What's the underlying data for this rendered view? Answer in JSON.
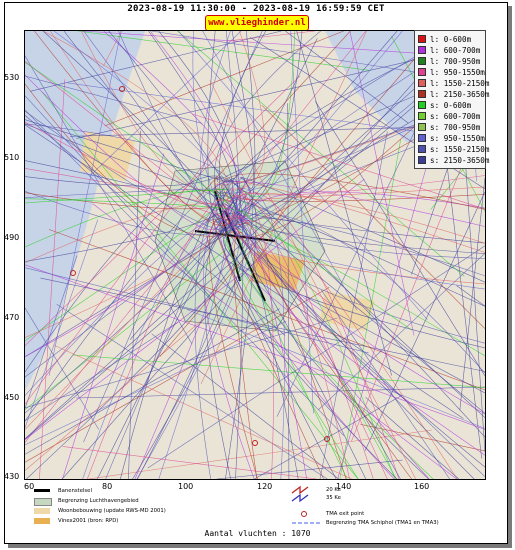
{
  "header": {
    "timerange": "2023-08-19 11:30:00 - 2023-08-19 16:59:59 CET",
    "site": "www.vlieghinder.nl"
  },
  "axes": {
    "y_ticks": [
      "530",
      "510",
      "490",
      "470",
      "450",
      "430"
    ],
    "x_ticks": [
      "60",
      "80",
      "100",
      "120",
      "140",
      "160"
    ]
  },
  "legend": [
    {
      "label": "l: 0-600m",
      "color": "#e01010"
    },
    {
      "label": "l: 600-700m",
      "color": "#b030e0"
    },
    {
      "label": "l: 700-950m",
      "color": "#208020"
    },
    {
      "label": "l: 950-1550m",
      "color": "#e04090"
    },
    {
      "label": "l: 1550-2150m",
      "color": "#e06060"
    },
    {
      "label": "l: 2150-3650m",
      "color": "#b03020"
    },
    {
      "label": "s: 0-600m",
      "color": "#20d020"
    },
    {
      "label": "s: 600-700m",
      "color": "#70d030"
    },
    {
      "label": "s: 700-950m",
      "color": "#90c050"
    },
    {
      "label": "s: 950-1550m",
      "color": "#6060d0"
    },
    {
      "label": "s: 1550-2150m",
      "color": "#5050b0"
    },
    {
      "label": "s: 2150-3650m",
      "color": "#3c3c9a"
    }
  ],
  "bottom_legend": {
    "runway": "Banenstelsel",
    "airport": "Begrenzing Luchthavengebied",
    "housing": "Woonbebouwing (update RWS-MD 2001)",
    "vinex": "Vinex2001 (bron: RPD)",
    "ke20": "20 Ke",
    "ke35": "35 Ke",
    "tma_exit": "TMA exit point",
    "tma_bound": "Begrenzing TMA Schiphol  (TMA1 en TMA3)"
  },
  "footer": {
    "count": "Aantal vluchten : 1070"
  }
}
